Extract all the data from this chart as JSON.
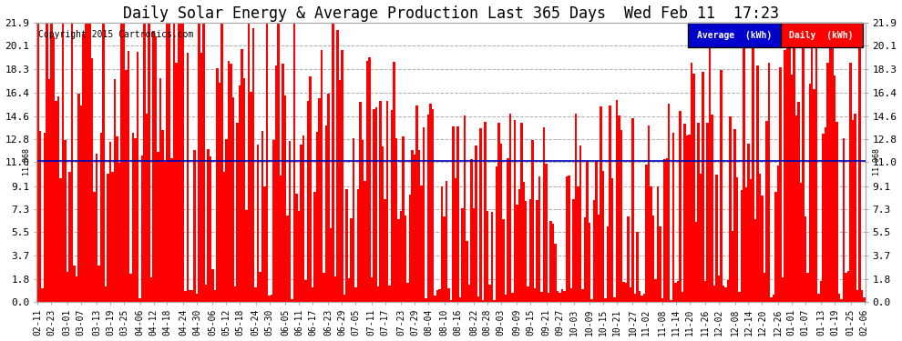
{
  "title": "Daily Solar Energy & Average Production Last 365 Days  Wed Feb 11  17:23",
  "average_value": 11.068,
  "average_label": "Average  (kWh)",
  "daily_label": "Daily  (kWh)",
  "bar_color": "#ff0000",
  "average_line_color": "#0000bb",
  "background_color": "#ffffff",
  "plot_bg_color": "#ffffff",
  "yticks": [
    0.0,
    1.8,
    3.7,
    5.5,
    7.3,
    9.1,
    11.0,
    12.8,
    14.6,
    16.4,
    18.3,
    20.1,
    21.9
  ],
  "ylim": [
    0.0,
    21.9
  ],
  "copyright_text": "Copyright 2015 Cartronics.com",
  "avg_side_label": "11.068",
  "grid_color": "#999999",
  "legend_avg_bg": "#0000cc",
  "legend_daily_bg": "#ff0000",
  "legend_text_color": "#ffffff",
  "tick_label_fontsize": 7.0,
  "title_fontsize": 12,
  "tick_labs": [
    "02-11",
    "02-23",
    "03-01",
    "03-07",
    "03-13",
    "03-19",
    "03-25",
    "04-06",
    "04-12",
    "04-18",
    "04-24",
    "04-30",
    "05-06",
    "05-12",
    "05-18",
    "05-24",
    "05-30",
    "06-05",
    "06-11",
    "06-17",
    "06-23",
    "06-29",
    "07-05",
    "07-11",
    "07-17",
    "07-23",
    "07-29",
    "08-04",
    "08-10",
    "08-16",
    "08-22",
    "08-28",
    "09-03",
    "09-09",
    "09-15",
    "09-21",
    "09-27",
    "10-03",
    "10-09",
    "10-15",
    "10-21",
    "10-27",
    "11-02",
    "11-08",
    "11-14",
    "11-20",
    "11-26",
    "12-02",
    "12-08",
    "12-14",
    "12-20",
    "12-26",
    "01-01",
    "01-07",
    "01-13",
    "01-19",
    "01-25",
    "02-06"
  ]
}
